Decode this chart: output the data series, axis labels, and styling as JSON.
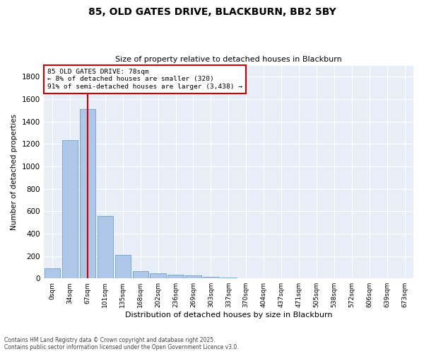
{
  "title_line1": "85, OLD GATES DRIVE, BLACKBURN, BB2 5BY",
  "title_line2": "Size of property relative to detached houses in Blackburn",
  "xlabel": "Distribution of detached houses by size in Blackburn",
  "ylabel": "Number of detached properties",
  "bar_labels": [
    "0sqm",
    "34sqm",
    "67sqm",
    "101sqm",
    "135sqm",
    "168sqm",
    "202sqm",
    "236sqm",
    "269sqm",
    "303sqm",
    "337sqm",
    "370sqm",
    "404sqm",
    "437sqm",
    "471sqm",
    "505sqm",
    "538sqm",
    "572sqm",
    "606sqm",
    "639sqm",
    "673sqm"
  ],
  "bar_heights": [
    90,
    1235,
    1510,
    560,
    210,
    65,
    45,
    35,
    28,
    15,
    10,
    0,
    0,
    0,
    0,
    0,
    0,
    0,
    0,
    0,
    0
  ],
  "bar_color": "#aec6e8",
  "bar_edge_color": "#5a96c8",
  "annotation_box_text": "85 OLD GATES DRIVE: 78sqm\n← 8% of detached houses are smaller (320)\n91% of semi-detached houses are larger (3,438) →",
  "vline_x_index": 2.0,
  "ylim": [
    0,
    1900
  ],
  "yticks": [
    0,
    200,
    400,
    600,
    800,
    1000,
    1200,
    1400,
    1600,
    1800
  ],
  "bg_color": "#e8eef8",
  "grid_color": "#ffffff",
  "footer_line1": "Contains HM Land Registry data © Crown copyright and database right 2025.",
  "footer_line2": "Contains public sector information licensed under the Open Government Licence v3.0.",
  "vline_color": "#cc0000",
  "ann_box_edge_color": "#cc0000",
  "fig_width": 6.0,
  "fig_height": 5.0,
  "dpi": 100
}
